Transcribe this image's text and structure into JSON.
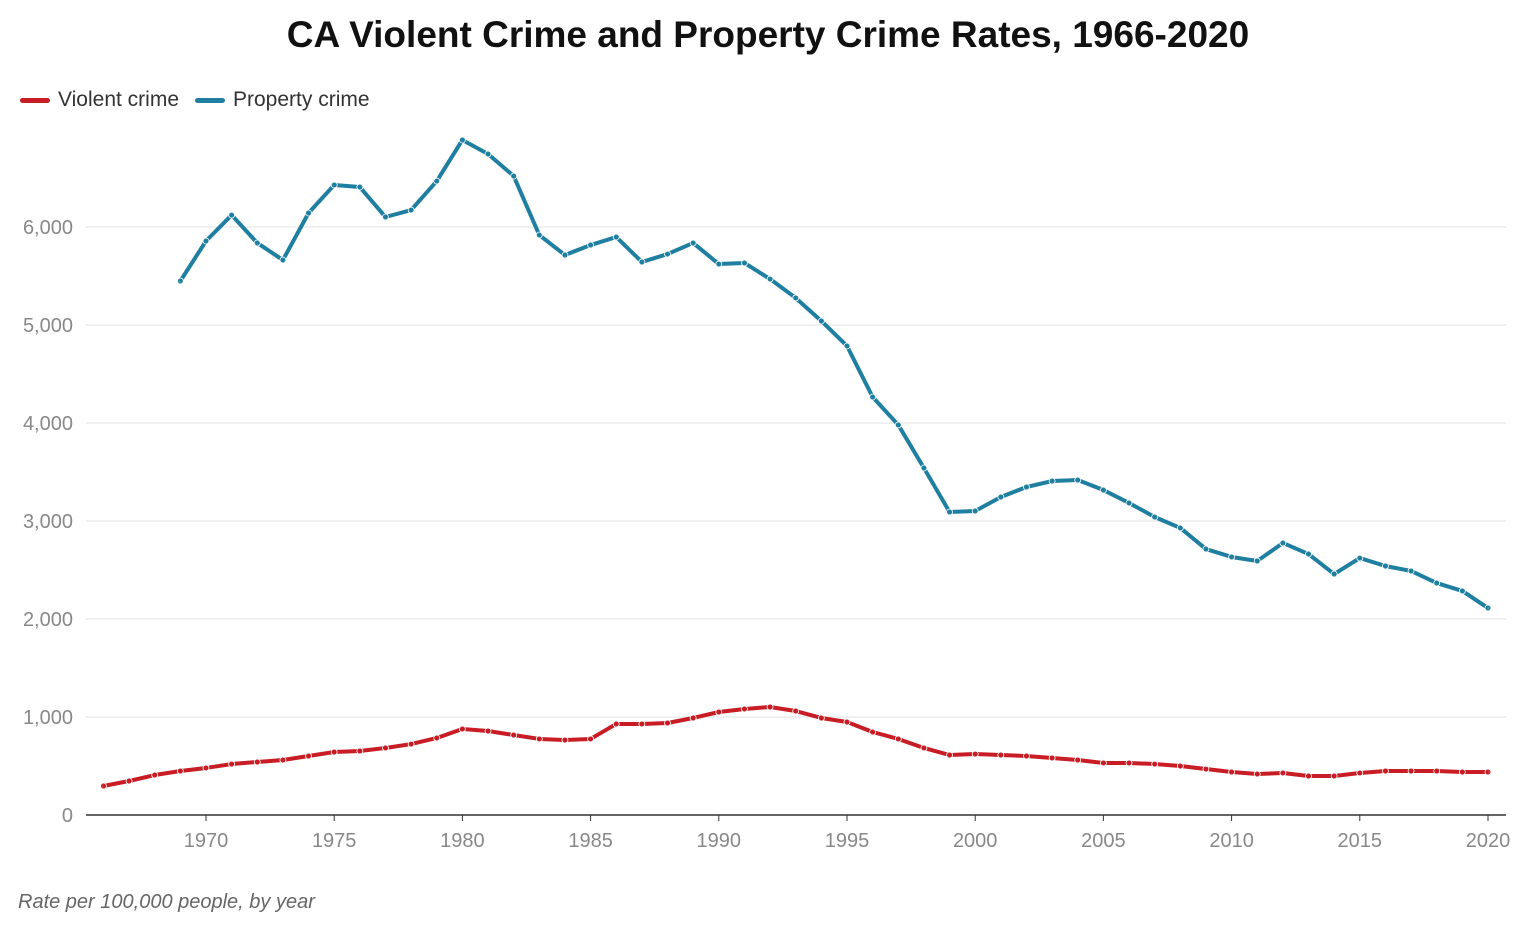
{
  "chart_data": {
    "type": "line",
    "title": "CA Violent Crime and Property Crime Rates, 1966-2020",
    "note": "Rate per 100,000 people, by year",
    "xlabel": "",
    "ylabel": "",
    "xlim": [
      1966,
      2020
    ],
    "ylim": [
      0,
      6900
    ],
    "x_ticks": [
      "1970",
      "1975",
      "1980",
      "1985",
      "1990",
      "1995",
      "2000",
      "2005",
      "2010",
      "2015",
      "2020"
    ],
    "y_ticks": [
      "0",
      "1,000",
      "2,000",
      "3,000",
      "4,000",
      "5,000",
      "6,000"
    ],
    "grid": true,
    "legend_position": "top-left",
    "series": [
      {
        "name": "Violent crime",
        "color": "#c81d25",
        "start_year": 1966,
        "values": [
          296,
          347,
          408,
          449,
          480,
          520,
          541,
          561,
          602,
          643,
          653,
          684,
          724,
          786,
          878,
          857,
          816,
          776,
          765,
          776,
          929,
          929,
          939,
          990,
          1051,
          1082,
          1102,
          1061,
          990,
          949,
          847,
          776,
          684,
          612,
          622,
          612,
          602,
          582,
          561,
          531,
          531,
          520,
          500,
          469,
          439,
          418,
          429,
          398,
          398,
          429,
          449,
          449,
          449,
          439,
          439
        ]
      },
      {
        "name": "Property crime",
        "color": "#1f7fa0",
        "start_year": 1969,
        "values": [
          5449,
          5857,
          6122,
          5837,
          5663,
          6143,
          6429,
          6408,
          6102,
          6173,
          6469,
          6888,
          6745,
          6520,
          5918,
          5714,
          5816,
          5898,
          5643,
          5724,
          5837,
          5622,
          5633,
          5469,
          5276,
          5041,
          4786,
          4265,
          3980,
          3541,
          3092,
          3102,
          3245,
          3347,
          3408,
          3418,
          3316,
          3184,
          3041,
          2929,
          2714,
          2633,
          2592,
          2776,
          2663,
          2459,
          2622,
          2541,
          2490,
          2367,
          2286,
          2112
        ]
      }
    ]
  }
}
